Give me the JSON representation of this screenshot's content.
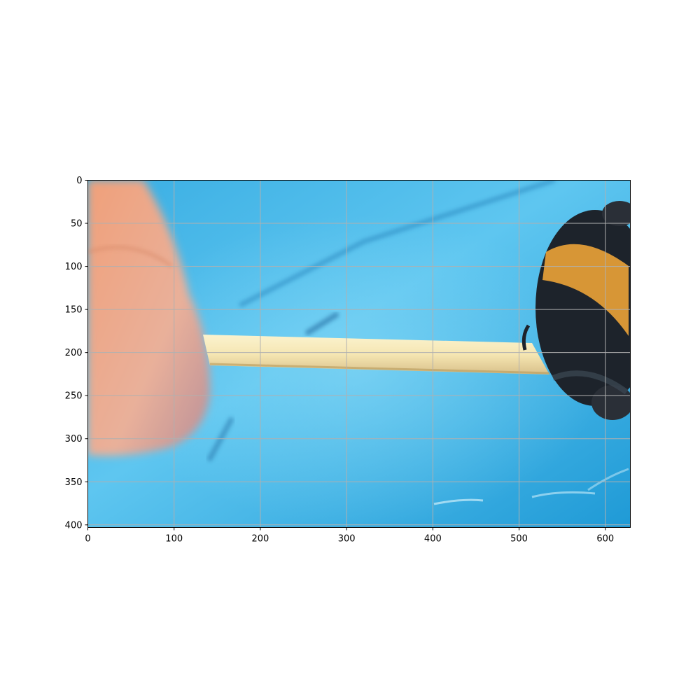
{
  "colors": {
    "water": "#2aa6e0",
    "water_light": "#6fd0f4",
    "finger": "#eaa586",
    "stick": "#f3e7b8",
    "bee_dark": "#1d232b",
    "bee_orange": "#d79636",
    "grid": "#b0b0b0",
    "axes": "#000000"
  },
  "chart_data": {
    "type": "image",
    "xlim": [
      0,
      629
    ],
    "ylim": [
      403,
      0
    ],
    "grid": true,
    "x_ticks": [
      0,
      100,
      200,
      300,
      400,
      500,
      600
    ],
    "y_ticks": [
      0,
      50,
      100,
      150,
      200,
      250,
      300,
      350,
      400
    ],
    "x_tick_labels": [
      "0",
      "100",
      "200",
      "300",
      "400",
      "500",
      "600"
    ],
    "y_tick_labels": [
      "0",
      "50",
      "100",
      "150",
      "200",
      "250",
      "300",
      "350",
      "400"
    ]
  },
  "image": {
    "subjects": [
      "finger-icon",
      "wooden-stick-icon",
      "bumblebee-icon",
      "blue-water-background-icon"
    ]
  }
}
